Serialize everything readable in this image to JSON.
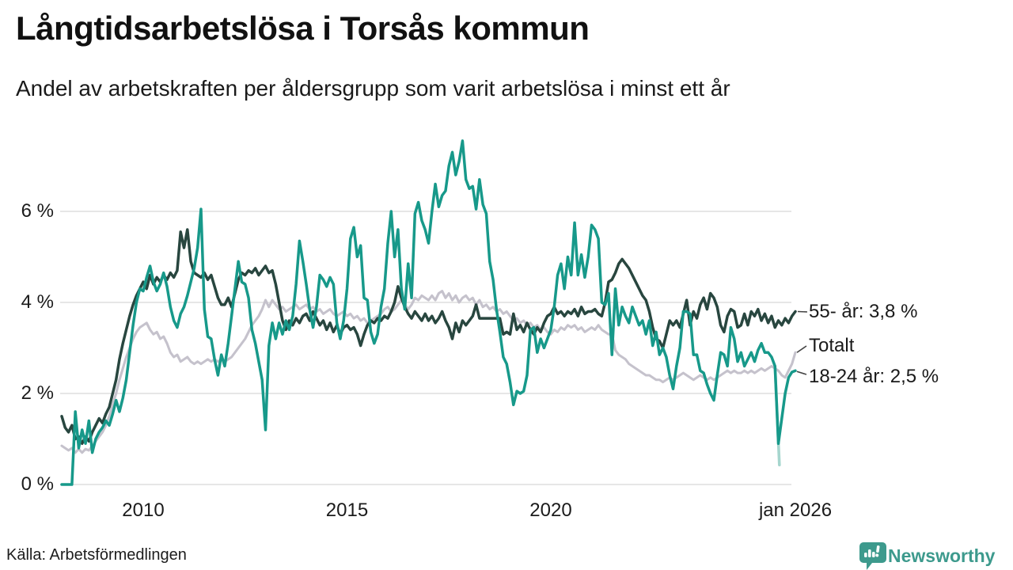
{
  "header": {
    "title": "Långtidsarbetslösa i Torsås kommun",
    "subtitle": "Andel av arbetskraften per åldersgrupp som varit arbetslösa i minst ett år"
  },
  "footer": {
    "source": "Källa: Arbetsförmedlingen",
    "brand": "Newsworthy",
    "brand_color": "#3d9a8d"
  },
  "chart_data": {
    "type": "line",
    "title": "Långtidsarbetslösa i Torsås kommun",
    "subtitle": "Andel av arbetskraften per åldersgrupp som varit arbetslösa i minst ett år",
    "x_start": "2008-01",
    "x_end": "2026-01",
    "frequency": "monthly",
    "ylim": [
      0,
      7.8
    ],
    "grid": "horizontal",
    "legend_position": "right-end-labels",
    "grid_color": "#e2e2e2",
    "y_ticks": [
      {
        "label": "6 %",
        "value": 6
      },
      {
        "label": "4 %",
        "value": 4
      },
      {
        "label": "2 %",
        "value": 2
      },
      {
        "label": "0 %",
        "value": 0
      }
    ],
    "x_ticks": [
      {
        "label": "2010",
        "month_index": 24
      },
      {
        "label": "2015",
        "month_index": 84
      },
      {
        "label": "2020",
        "month_index": 144
      },
      {
        "label": "jan 2026",
        "month_index": 216
      }
    ],
    "series": [
      {
        "name": "55- år",
        "end_label": "55- år: 3,8 %",
        "last_value": 3.8,
        "color": "#28463f",
        "values": [
          1.5,
          1.25,
          1.15,
          1.3,
          1.0,
          1.05,
          0.9,
          1.05,
          0.95,
          1.15,
          1.3,
          1.45,
          1.35,
          1.55,
          1.7,
          2.0,
          2.3,
          2.75,
          3.1,
          3.4,
          3.7,
          3.95,
          4.15,
          4.3,
          4.45,
          4.3,
          4.6,
          4.4,
          4.55,
          4.45,
          4.6,
          4.5,
          4.65,
          4.55,
          4.7,
          5.55,
          5.2,
          5.6,
          4.9,
          4.65,
          4.6,
          4.55,
          4.65,
          4.5,
          4.6,
          4.35,
          4.1,
          3.95,
          3.95,
          4.1,
          3.9,
          4.2,
          4.5,
          4.65,
          4.6,
          4.7,
          4.65,
          4.75,
          4.6,
          4.7,
          4.8,
          4.65,
          4.7,
          4.4,
          4.0,
          3.6,
          3.4,
          3.6,
          3.5,
          3.65,
          3.55,
          3.7,
          3.75,
          3.6,
          3.8,
          3.65,
          3.5,
          3.6,
          3.4,
          3.55,
          3.35,
          3.5,
          3.3,
          3.45,
          3.5,
          3.4,
          3.45,
          3.3,
          3.05,
          3.3,
          3.5,
          3.6,
          3.55,
          3.65,
          3.6,
          3.7,
          3.65,
          3.8,
          4.0,
          4.35,
          4.1,
          3.9,
          3.75,
          3.65,
          3.8,
          3.7,
          3.6,
          3.75,
          3.6,
          3.7,
          3.55,
          3.65,
          3.8,
          3.6,
          3.45,
          3.2,
          3.55,
          3.35,
          3.6,
          3.5,
          3.6,
          3.7,
          3.95,
          3.65,
          3.65,
          3.65,
          3.65,
          3.65,
          3.65,
          3.65,
          3.3,
          3.35,
          3.3,
          3.75,
          3.4,
          3.5,
          3.35,
          3.55,
          3.4,
          3.3,
          3.45,
          3.35,
          3.55,
          3.7,
          3.75,
          3.9,
          3.75,
          3.8,
          3.7,
          3.8,
          3.75,
          3.85,
          3.7,
          3.9,
          3.75,
          3.8,
          3.8,
          3.85,
          3.75,
          3.7,
          4.0,
          4.45,
          4.5,
          4.65,
          4.85,
          4.95,
          4.85,
          4.75,
          4.6,
          4.45,
          4.3,
          4.15,
          4.05,
          3.8,
          3.45,
          3.2,
          3.15,
          3.0,
          3.3,
          3.6,
          3.5,
          3.6,
          3.45,
          3.75,
          4.05,
          3.5,
          3.8,
          3.65,
          3.95,
          4.1,
          3.85,
          4.2,
          4.1,
          3.9,
          3.5,
          3.35,
          3.7,
          3.85,
          3.8,
          3.45,
          3.5,
          3.75,
          3.5,
          3.8,
          3.7,
          3.85,
          3.6,
          3.75,
          3.55,
          3.7,
          3.45,
          3.6,
          3.5,
          3.65,
          3.55,
          3.7,
          3.8
        ]
      },
      {
        "name": "Totalt",
        "end_label": "Totalt",
        "last_value": 2.9,
        "color": "#c5c2cc",
        "values": [
          0.85,
          0.8,
          0.75,
          0.8,
          0.7,
          0.78,
          0.7,
          0.78,
          0.75,
          0.85,
          0.95,
          1.05,
          1.15,
          1.3,
          1.5,
          1.75,
          2.0,
          2.3,
          2.55,
          2.8,
          3.0,
          3.2,
          3.35,
          3.45,
          3.5,
          3.55,
          3.4,
          3.3,
          3.35,
          3.2,
          3.25,
          3.1,
          2.9,
          2.8,
          2.85,
          2.7,
          2.75,
          2.8,
          2.7,
          2.65,
          2.7,
          2.65,
          2.7,
          2.75,
          2.7,
          2.75,
          2.7,
          2.75,
          2.7,
          2.75,
          2.8,
          2.9,
          3.0,
          3.1,
          3.2,
          3.35,
          3.5,
          3.6,
          3.7,
          3.85,
          4.05,
          3.9,
          4.05,
          3.95,
          3.85,
          3.9,
          3.8,
          3.85,
          3.9,
          3.95,
          3.85,
          3.9,
          3.95,
          3.85,
          3.9,
          3.8,
          3.85,
          3.75,
          3.8,
          3.85,
          3.75,
          3.7,
          3.75,
          3.8,
          3.7,
          3.75,
          3.65,
          3.7,
          3.6,
          3.65,
          3.55,
          3.6,
          3.65,
          3.7,
          3.75,
          3.85,
          3.9,
          3.8,
          3.85,
          3.95,
          4.05,
          3.95,
          3.85,
          3.95,
          4.1,
          4.05,
          4.15,
          4.1,
          4.05,
          4.15,
          4.05,
          4.2,
          4.25,
          4.1,
          4.2,
          4.05,
          4.15,
          4.0,
          4.1,
          4.15,
          4.05,
          4.1,
          3.95,
          4.05,
          3.9,
          3.95,
          3.85,
          3.9,
          3.8,
          3.85,
          3.75,
          3.8,
          3.7,
          3.6,
          3.65,
          3.55,
          3.6,
          3.5,
          3.55,
          3.45,
          3.5,
          3.4,
          3.45,
          3.35,
          3.3,
          3.4,
          3.35,
          3.45,
          3.4,
          3.5,
          3.45,
          3.5,
          3.4,
          3.45,
          3.35,
          3.4,
          3.45,
          3.4,
          3.5,
          3.4,
          3.35,
          3.3,
          3.3,
          2.95,
          2.85,
          2.8,
          2.75,
          2.65,
          2.6,
          2.55,
          2.5,
          2.45,
          2.4,
          2.4,
          2.35,
          2.3,
          2.3,
          2.25,
          2.3,
          2.35,
          2.3,
          2.35,
          2.4,
          2.45,
          2.4,
          2.35,
          2.3,
          2.35,
          2.4,
          2.35,
          2.3,
          2.35,
          2.3,
          2.35,
          2.4,
          2.45,
          2.5,
          2.45,
          2.5,
          2.45,
          2.45,
          2.5,
          2.45,
          2.5,
          2.45,
          2.5,
          2.55,
          2.5,
          2.55,
          2.6,
          2.55,
          2.5,
          2.4,
          2.35,
          2.5,
          2.65,
          2.9
        ]
      },
      {
        "name": "18-24 år",
        "end_label": "18-24 år: 2,5 %",
        "last_value": 2.5,
        "color": "#17998a",
        "values": [
          0,
          0,
          0,
          0,
          1.6,
          0.8,
          1.2,
          0.9,
          1.4,
          0.7,
          1.0,
          1.15,
          1.25,
          1.4,
          1.3,
          1.55,
          1.85,
          1.6,
          1.9,
          2.3,
          2.9,
          3.5,
          4.0,
          4.3,
          4.25,
          4.55,
          4.8,
          4.45,
          4.25,
          4.4,
          4.65,
          4.35,
          3.9,
          3.6,
          3.45,
          3.75,
          3.9,
          4.15,
          4.45,
          4.75,
          5.2,
          6.05,
          3.85,
          3.25,
          3.2,
          2.75,
          2.4,
          2.85,
          2.6,
          3.1,
          3.7,
          4.3,
          4.9,
          4.45,
          4.4,
          4.1,
          3.4,
          3.1,
          2.7,
          2.3,
          1.2,
          3.05,
          3.55,
          3.2,
          3.55,
          3.3,
          3.6,
          3.4,
          3.7,
          4.4,
          5.35,
          4.9,
          4.4,
          3.85,
          3.45,
          3.9,
          4.6,
          4.5,
          4.35,
          4.55,
          4.4,
          3.55,
          3.2,
          3.6,
          4.3,
          5.4,
          5.65,
          5.0,
          5.25,
          4.1,
          4.05,
          3.35,
          3.1,
          3.3,
          3.9,
          4.3,
          5.3,
          6.0,
          5.0,
          5.6,
          4.3,
          3.85,
          4.85,
          4.1,
          5.95,
          6.2,
          5.8,
          5.6,
          5.3,
          6.0,
          6.6,
          6.1,
          6.35,
          6.45,
          7.0,
          7.3,
          6.8,
          7.1,
          7.55,
          6.7,
          6.5,
          6.55,
          6.05,
          6.7,
          6.15,
          5.95,
          4.9,
          4.5,
          3.85,
          3.35,
          2.8,
          2.65,
          2.25,
          1.75,
          2.05,
          2.0,
          2.05,
          2.4,
          3.4,
          3.45,
          2.9,
          3.2,
          3.0,
          3.2,
          3.4,
          3.9,
          4.6,
          4.85,
          4.3,
          5.0,
          4.6,
          5.75,
          4.6,
          5.05,
          4.55,
          5.0,
          5.7,
          5.6,
          5.4,
          4.0,
          3.95,
          4.2,
          2.85,
          4.3,
          3.5,
          3.9,
          3.7,
          3.55,
          3.9,
          3.7,
          3.5,
          3.6,
          3.3,
          3.6,
          3.05,
          3.35,
          2.85,
          3.0,
          2.8,
          2.4,
          2.1,
          2.6,
          3.0,
          3.8,
          3.8,
          3.75,
          2.85,
          2.85,
          2.5,
          2.45,
          2.2,
          2.0,
          1.85,
          2.4,
          2.9,
          2.85,
          2.6,
          3.45,
          3.2,
          2.7,
          2.9,
          2.6,
          2.75,
          2.9,
          2.7,
          2.95,
          3.1,
          2.9,
          2.9,
          2.8,
          2.6,
          0.9,
          1.45,
          2.0,
          2.35,
          2.47,
          2.5
        ]
      }
    ],
    "preliminary_segment": {
      "series": "18-24 år",
      "color": "#a6d6ce",
      "points": [
        {
          "month_index": 210,
          "value": 2.6
        },
        {
          "month_index": 211.3,
          "value": 0.43
        }
      ]
    }
  }
}
